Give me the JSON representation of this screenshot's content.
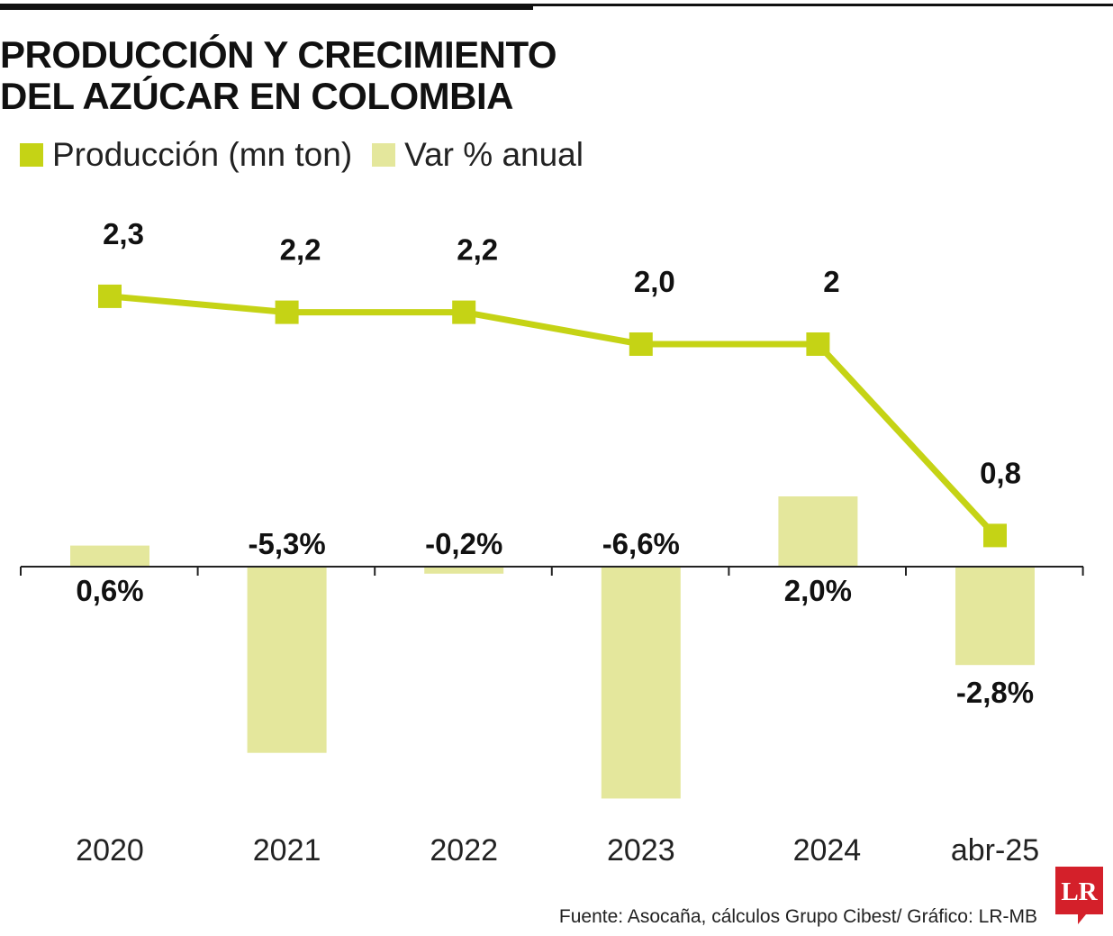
{
  "title": {
    "line1": "PRODUCCIÓN Y CRECIMIENTO",
    "line2": "DEL AZÚCAR EN COLOMBIA"
  },
  "legend": [
    {
      "label": "Producción (mn ton)",
      "color": "#c5d315"
    },
    {
      "label": "Var % anual",
      "color": "#e4e79c"
    }
  ],
  "source": "Fuente: Asocaña, cálculos Grupo Cibest/ Gráfico: LR-MB",
  "logo": {
    "text": "LR",
    "color": "#d4202a"
  },
  "colors": {
    "line": "#c5d315",
    "bars": "#e4e79c",
    "axis": "#222222"
  },
  "chart_data": {
    "type": "bar+line",
    "categories": [
      "2020",
      "2021",
      "2022",
      "2023",
      "2024",
      "abr-25"
    ],
    "series": [
      {
        "name": "Producción (mn ton)",
        "type": "line",
        "values": [
          2.3,
          2.2,
          2.2,
          2.0,
          2.0,
          0.8
        ],
        "labels": [
          "2,3",
          "2,2",
          "2,2",
          "2,0",
          "2",
          "0,8"
        ]
      },
      {
        "name": "Var % anual",
        "type": "bar",
        "values": [
          0.6,
          -5.3,
          -0.2,
          -6.6,
          2.0,
          -2.8
        ],
        "labels": [
          "0,6%",
          "-5,3%",
          "-0,2%",
          "-6,6%",
          "2,0%",
          "-2,8%"
        ]
      }
    ],
    "grid": false
  }
}
